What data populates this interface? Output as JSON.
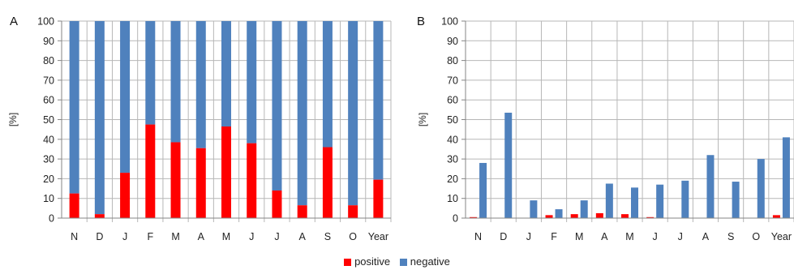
{
  "colors": {
    "positive": "#ff0000",
    "negative": "#4f81bd",
    "grid": "#b7b7b7",
    "axis": "#868686"
  },
  "legend": [
    {
      "key": "positive",
      "label": "positive"
    },
    {
      "key": "negative",
      "label": "negative"
    }
  ],
  "chart_data": [
    {
      "type": "bar",
      "stacked": true,
      "panel_label": "A",
      "ylabel": "[%]",
      "ylim": [
        0,
        100
      ],
      "yticks": [
        0,
        10,
        20,
        30,
        40,
        50,
        60,
        70,
        80,
        90,
        100
      ],
      "grid": true,
      "legend_position": "bottom",
      "categories": [
        "N",
        "D",
        "J",
        "F",
        "M",
        "A",
        "M",
        "J",
        "J",
        "A",
        "S",
        "O",
        "Year"
      ],
      "series": [
        {
          "name": "positive",
          "values": [
            12.5,
            2,
            23,
            47.5,
            38.5,
            35.5,
            46.5,
            38,
            14,
            6.5,
            36,
            6.5,
            19.5
          ]
        },
        {
          "name": "negative",
          "values": [
            87.5,
            98,
            77,
            52.5,
            61.5,
            64.5,
            53.5,
            62,
            86,
            93.5,
            64,
            93.5,
            80.5
          ]
        }
      ]
    },
    {
      "type": "bar",
      "stacked": false,
      "panel_label": "B",
      "ylabel": "[%]",
      "ylim": [
        0,
        100
      ],
      "yticks": [
        0,
        10,
        20,
        30,
        40,
        50,
        60,
        70,
        80,
        90,
        100
      ],
      "grid": true,
      "legend_position": "bottom",
      "categories": [
        "N",
        "D",
        "J",
        "F",
        "M",
        "A",
        "M",
        "J",
        "J",
        "A",
        "S",
        "O",
        "Year"
      ],
      "series": [
        {
          "name": "positive",
          "values": [
            0.5,
            0,
            0,
            1.5,
            2,
            2.5,
            2,
            0.5,
            0,
            0,
            0,
            0,
            1.5
          ]
        },
        {
          "name": "negative",
          "values": [
            28,
            53.5,
            9,
            4.5,
            9,
            17.5,
            15.5,
            17,
            19,
            32,
            18.5,
            30,
            41
          ]
        }
      ]
    }
  ]
}
